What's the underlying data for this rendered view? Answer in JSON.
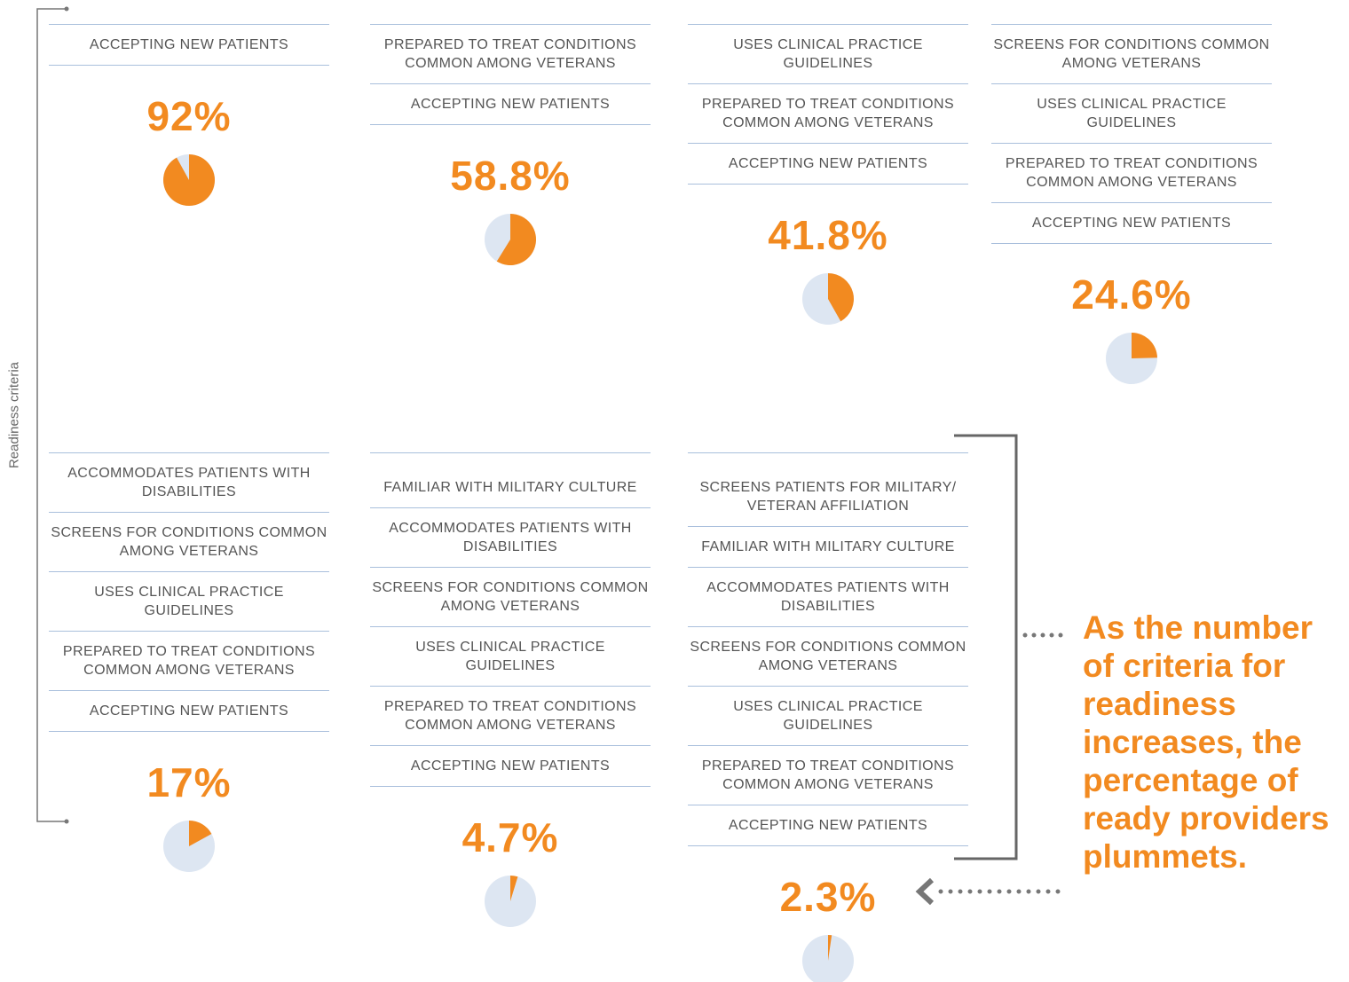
{
  "axis_label": "Readiness criteria",
  "annotation": "As the number of criteria for readiness increases, the percentage of ready providers plummets.",
  "chart_data": [
    {
      "type": "pie",
      "color": "#f28a20",
      "criteria": [
        "ACCEPTING NEW PATIENTS"
      ],
      "values": [
        92
      ],
      "value_labels": [
        "92%"
      ]
    },
    {
      "type": "pie",
      "color": "#f28a20",
      "criteria": [
        "PREPARED TO TREAT CONDITIONS COMMON AMONG VETERANS",
        "ACCEPTING NEW PATIENTS"
      ],
      "values": [
        58.8
      ],
      "value_labels": [
        "58.8%"
      ]
    },
    {
      "type": "pie",
      "color": "#f28a20",
      "criteria": [
        "USES CLINICAL PRACTICE GUIDELINES",
        "PREPARED TO TREAT CONDITIONS COMMON AMONG VETERANS",
        "ACCEPTING NEW PATIENTS"
      ],
      "values": [
        41.8
      ],
      "value_labels": [
        "41.8%"
      ]
    },
    {
      "type": "pie",
      "color": "#f28a20",
      "criteria": [
        "SCREENS FOR CONDITIONS COMMON AMONG VETERANS",
        "USES CLINICAL PRACTICE GUIDELINES",
        "PREPARED TO TREAT CONDITIONS COMMON AMONG VETERANS",
        "ACCEPTING NEW PATIENTS"
      ],
      "values": [
        24.6
      ],
      "value_labels": [
        "24.6%"
      ]
    },
    {
      "type": "pie",
      "color": "#f28a20",
      "criteria": [
        "ACCOMMODATES PATIENTS WITH DISABILITIES",
        "SCREENS FOR CONDITIONS COMMON AMONG VETERANS",
        "USES CLINICAL PRACTICE GUIDELINES",
        "PREPARED TO TREAT CONDITIONS COMMON AMONG VETERANS",
        "ACCEPTING NEW PATIENTS"
      ],
      "values": [
        17
      ],
      "value_labels": [
        "17%"
      ]
    },
    {
      "type": "pie",
      "color": "#f28a20",
      "criteria": [
        "FAMILIAR WITH MILITARY CULTURE",
        "ACCOMMODATES PATIENTS WITH DISABILITIES",
        "SCREENS FOR CONDITIONS COMMON AMONG VETERANS",
        "USES CLINICAL PRACTICE GUIDELINES",
        "PREPARED TO TREAT CONDITIONS COMMON AMONG VETERANS",
        "ACCEPTING NEW PATIENTS"
      ],
      "values": [
        4.7
      ],
      "value_labels": [
        "4.7%"
      ]
    },
    {
      "type": "pie",
      "color": "#f28a20",
      "criteria": [
        "SCREENS PATIENTS FOR MILITARY/ VETERAN AFFILIATION",
        "FAMILIAR WITH MILITARY CULTURE",
        "ACCOMMODATES PATIENTS WITH DISABILITIES",
        "SCREENS FOR CONDITIONS COMMON AMONG VETERANS",
        "USES CLINICAL PRACTICE GUIDELINES",
        "PREPARED TO TREAT CONDITIONS COMMON AMONG VETERANS",
        "ACCEPTING NEW PATIENTS"
      ],
      "values": [
        2.3
      ],
      "value_labels": [
        "2.3%"
      ]
    }
  ]
}
